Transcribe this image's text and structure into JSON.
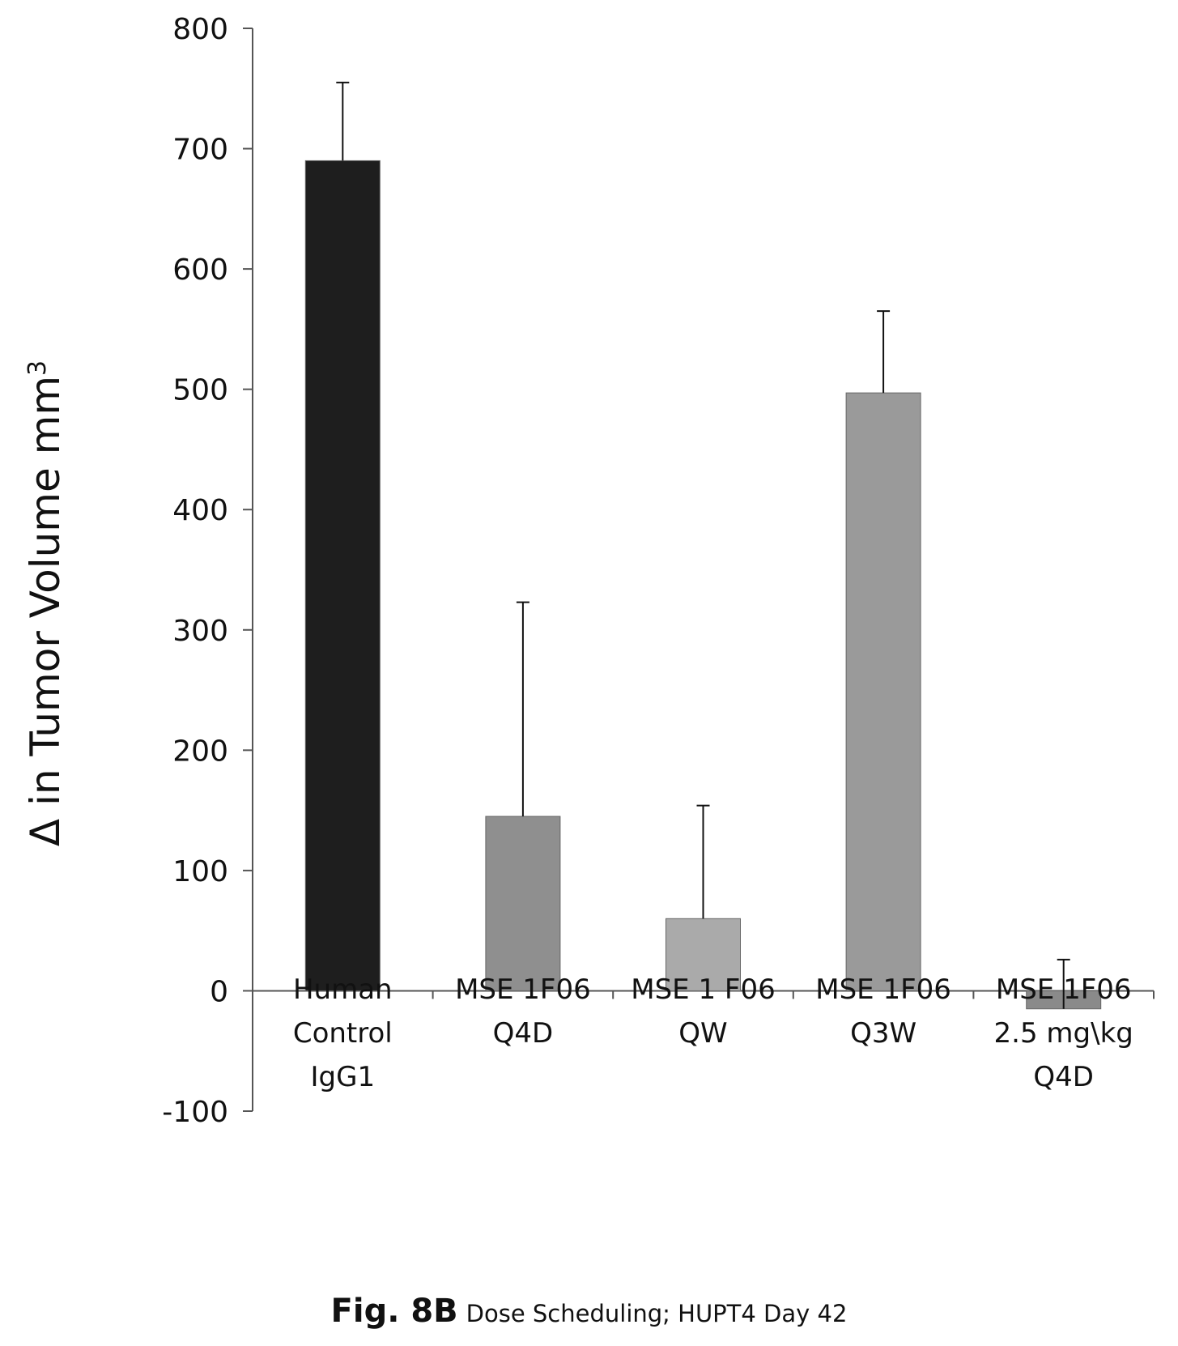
{
  "chart_data": {
    "type": "bar",
    "ylabel": "Δ in Tumor Volume mm",
    "ylabel_superscript": "3",
    "ylim": [
      -100,
      800
    ],
    "yticks": [
      "-100",
      "0",
      "100",
      "200",
      "300",
      "400",
      "500",
      "600",
      "700",
      "800"
    ],
    "grid": false,
    "categories": [
      [
        "Human",
        "Control",
        "IgG1"
      ],
      [
        "MSE 1F06",
        "Q4D"
      ],
      [
        "MSE 1 F06",
        "QW"
      ],
      [
        "MSE 1F06",
        "Q3W"
      ],
      [
        "MSE 1F06",
        "2.5 mg\\kg",
        "Q4D"
      ]
    ],
    "values": [
      690,
      145,
      60,
      497,
      -15
    ],
    "error_upper": [
      755,
      323,
      154,
      565,
      26
    ],
    "colors": [
      "#1e1e1e",
      "#8f8f8f",
      "#aaaaaa",
      "#9a9a9a",
      "#8a8a8a"
    ]
  },
  "caption": {
    "figure": "Fig. 8B",
    "description": "Dose Scheduling; HUPT4 Day 42"
  }
}
